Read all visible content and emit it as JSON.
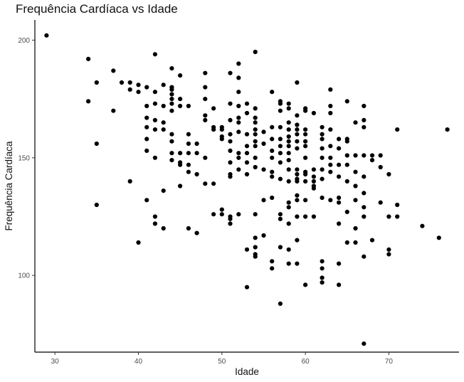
{
  "chart_data": {
    "type": "scatter",
    "title": "Frequência Cardíaca vs Idade",
    "xlabel": "Idade",
    "ylabel": "Frequência Cardíaca",
    "xlim": [
      27.6,
      78.4
    ],
    "ylim": [
      67.4,
      208.6
    ],
    "x_ticks": [
      30,
      40,
      50,
      60,
      70
    ],
    "y_ticks": [
      100,
      150,
      200
    ],
    "grid": false,
    "point_color": "#000000",
    "points": [
      [
        29,
        202
      ],
      [
        34,
        192
      ],
      [
        34,
        174
      ],
      [
        35,
        182
      ],
      [
        35,
        156
      ],
      [
        35,
        130
      ],
      [
        37,
        187
      ],
      [
        37,
        170
      ],
      [
        38,
        182
      ],
      [
        39,
        182
      ],
      [
        39,
        179
      ],
      [
        39,
        140
      ],
      [
        40,
        181
      ],
      [
        40,
        178
      ],
      [
        40,
        114
      ],
      [
        41,
        180
      ],
      [
        41,
        172
      ],
      [
        41,
        167
      ],
      [
        41,
        163
      ],
      [
        41,
        158
      ],
      [
        41,
        153
      ],
      [
        41,
        132
      ],
      [
        42,
        194
      ],
      [
        42,
        178
      ],
      [
        42,
        173
      ],
      [
        42,
        166
      ],
      [
        42,
        162
      ],
      [
        42,
        150
      ],
      [
        42,
        125
      ],
      [
        42,
        122
      ],
      [
        43,
        181
      ],
      [
        43,
        172
      ],
      [
        43,
        165
      ],
      [
        43,
        162
      ],
      [
        43,
        136
      ],
      [
        43,
        120
      ],
      [
        44,
        188
      ],
      [
        44,
        180
      ],
      [
        44,
        179
      ],
      [
        44,
        177
      ],
      [
        44,
        175
      ],
      [
        44,
        173
      ],
      [
        44,
        170
      ],
      [
        44,
        160
      ],
      [
        44,
        157
      ],
      [
        44,
        152
      ],
      [
        44,
        149
      ],
      [
        45,
        185
      ],
      [
        45,
        175
      ],
      [
        45,
        172
      ],
      [
        45,
        152
      ],
      [
        45,
        148
      ],
      [
        45,
        147
      ],
      [
        45,
        138
      ],
      [
        46,
        172
      ],
      [
        46,
        160
      ],
      [
        46,
        156
      ],
      [
        46,
        152
      ],
      [
        46,
        147
      ],
      [
        46,
        144
      ],
      [
        46,
        120
      ],
      [
        47,
        156
      ],
      [
        47,
        152
      ],
      [
        47,
        143
      ],
      [
        47,
        118
      ],
      [
        48,
        186
      ],
      [
        48,
        180
      ],
      [
        48,
        175
      ],
      [
        48,
        168
      ],
      [
        48,
        166
      ],
      [
        48,
        150
      ],
      [
        48,
        139
      ],
      [
        49,
        171
      ],
      [
        49,
        163
      ],
      [
        49,
        162
      ],
      [
        49,
        139
      ],
      [
        49,
        126
      ],
      [
        50,
        163
      ],
      [
        50,
        162
      ],
      [
        50,
        159
      ],
      [
        50,
        158
      ],
      [
        50,
        128
      ],
      [
        50,
        126
      ],
      [
        51,
        186
      ],
      [
        51,
        173
      ],
      [
        51,
        166
      ],
      [
        51,
        160
      ],
      [
        51,
        157
      ],
      [
        51,
        153
      ],
      [
        51,
        148
      ],
      [
        51,
        143
      ],
      [
        51,
        142
      ],
      [
        51,
        125
      ],
      [
        51,
        124
      ],
      [
        51,
        122
      ],
      [
        52,
        190
      ],
      [
        52,
        184
      ],
      [
        52,
        178
      ],
      [
        52,
        172
      ],
      [
        52,
        167
      ],
      [
        52,
        165
      ],
      [
        52,
        161
      ],
      [
        52,
        152
      ],
      [
        52,
        150
      ],
      [
        52,
        145
      ],
      [
        52,
        126
      ],
      [
        53,
        173
      ],
      [
        53,
        169
      ],
      [
        53,
        160
      ],
      [
        53,
        155
      ],
      [
        53,
        152
      ],
      [
        53,
        148
      ],
      [
        53,
        143
      ],
      [
        53,
        111
      ],
      [
        53,
        95
      ],
      [
        54,
        195
      ],
      [
        54,
        171
      ],
      [
        54,
        167
      ],
      [
        54,
        165
      ],
      [
        54,
        162
      ],
      [
        54,
        160
      ],
      [
        54,
        157
      ],
      [
        54,
        155
      ],
      [
        54,
        150
      ],
      [
        54,
        146
      ],
      [
        54,
        126
      ],
      [
        54,
        116
      ],
      [
        54,
        112
      ],
      [
        54,
        109
      ],
      [
        54,
        108
      ],
      [
        55,
        161
      ],
      [
        55,
        156
      ],
      [
        55,
        145
      ],
      [
        55,
        132
      ],
      [
        55,
        117
      ],
      [
        56,
        178
      ],
      [
        56,
        163
      ],
      [
        56,
        158
      ],
      [
        56,
        153
      ],
      [
        56,
        150
      ],
      [
        56,
        144
      ],
      [
        56,
        142
      ],
      [
        56,
        133
      ],
      [
        56,
        106
      ],
      [
        56,
        103
      ],
      [
        57,
        174
      ],
      [
        57,
        173
      ],
      [
        57,
        170
      ],
      [
        57,
        163
      ],
      [
        57,
        158
      ],
      [
        57,
        155
      ],
      [
        57,
        152
      ],
      [
        57,
        148
      ],
      [
        57,
        141
      ],
      [
        57,
        126
      ],
      [
        57,
        124
      ],
      [
        57,
        112
      ],
      [
        57,
        88
      ],
      [
        58,
        173
      ],
      [
        58,
        171
      ],
      [
        58,
        165
      ],
      [
        58,
        162
      ],
      [
        58,
        159
      ],
      [
        58,
        157
      ],
      [
        58,
        155
      ],
      [
        58,
        152
      ],
      [
        58,
        149
      ],
      [
        58,
        145
      ],
      [
        58,
        140
      ],
      [
        58,
        131
      ],
      [
        58,
        129
      ],
      [
        58,
        122
      ],
      [
        58,
        111
      ],
      [
        58,
        105
      ],
      [
        59,
        182
      ],
      [
        59,
        168
      ],
      [
        59,
        164
      ],
      [
        59,
        162
      ],
      [
        59,
        160
      ],
      [
        59,
        157
      ],
      [
        59,
        154
      ],
      [
        59,
        145
      ],
      [
        59,
        143
      ],
      [
        59,
        141
      ],
      [
        59,
        140
      ],
      [
        59,
        134
      ],
      [
        59,
        132
      ],
      [
        59,
        125
      ],
      [
        59,
        115
      ],
      [
        59,
        105
      ],
      [
        60,
        171
      ],
      [
        60,
        170
      ],
      [
        60,
        162
      ],
      [
        60,
        160
      ],
      [
        60,
        157
      ],
      [
        60,
        155
      ],
      [
        60,
        150
      ],
      [
        60,
        144
      ],
      [
        60,
        143
      ],
      [
        60,
        140
      ],
      [
        60,
        132
      ],
      [
        60,
        125
      ],
      [
        60,
        96
      ],
      [
        61,
        169
      ],
      [
        61,
        145
      ],
      [
        61,
        142
      ],
      [
        61,
        140
      ],
      [
        61,
        138
      ],
      [
        61,
        137
      ],
      [
        61,
        125
      ],
      [
        62,
        163
      ],
      [
        62,
        160
      ],
      [
        62,
        158
      ],
      [
        62,
        154
      ],
      [
        62,
        150
      ],
      [
        62,
        145
      ],
      [
        62,
        141
      ],
      [
        62,
        133
      ],
      [
        62,
        106
      ],
      [
        62,
        103
      ],
      [
        62,
        99
      ],
      [
        62,
        97
      ],
      [
        63,
        179
      ],
      [
        63,
        172
      ],
      [
        63,
        169
      ],
      [
        63,
        162
      ],
      [
        63,
        155
      ],
      [
        63,
        150
      ],
      [
        63,
        147
      ],
      [
        63,
        144
      ],
      [
        63,
        132
      ],
      [
        64,
        158
      ],
      [
        64,
        154
      ],
      [
        64,
        147
      ],
      [
        64,
        142
      ],
      [
        64,
        133
      ],
      [
        64,
        131
      ],
      [
        64,
        122
      ],
      [
        64,
        105
      ],
      [
        64,
        96
      ],
      [
        65,
        174
      ],
      [
        65,
        158
      ],
      [
        65,
        157
      ],
      [
        65,
        151
      ],
      [
        65,
        147
      ],
      [
        65,
        140
      ],
      [
        65,
        127
      ],
      [
        65,
        114
      ],
      [
        66,
        165
      ],
      [
        66,
        151
      ],
      [
        66,
        144
      ],
      [
        66,
        138
      ],
      [
        66,
        132
      ],
      [
        66,
        120
      ],
      [
        66,
        114
      ],
      [
        67,
        172
      ],
      [
        67,
        166
      ],
      [
        67,
        163
      ],
      [
        67,
        151
      ],
      [
        67,
        142
      ],
      [
        67,
        135
      ],
      [
        67,
        129
      ],
      [
        67,
        125
      ],
      [
        67,
        108
      ],
      [
        67,
        71
      ],
      [
        68,
        151
      ],
      [
        68,
        149
      ],
      [
        68,
        115
      ],
      [
        69,
        151
      ],
      [
        69,
        146
      ],
      [
        69,
        131
      ],
      [
        70,
        143
      ],
      [
        70,
        125
      ],
      [
        70,
        111
      ],
      [
        70,
        109
      ],
      [
        71,
        162
      ],
      [
        71,
        130
      ],
      [
        71,
        125
      ],
      [
        74,
        121
      ],
      [
        76,
        116
      ],
      [
        77,
        162
      ]
    ]
  }
}
